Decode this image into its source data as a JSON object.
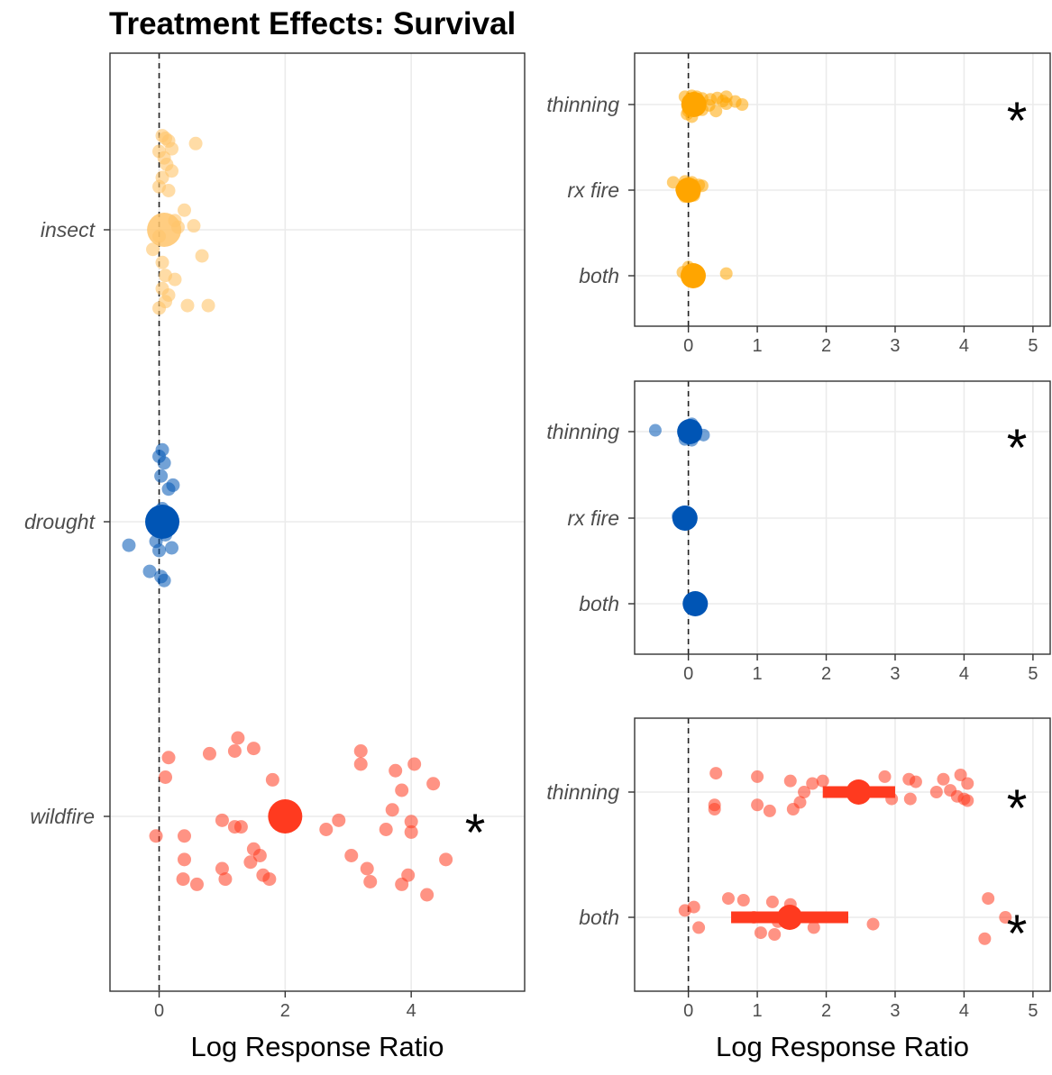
{
  "title": "Treatment Effects: Survival",
  "colors": {
    "orange_light": "#FFC46B",
    "orange": "#FFA500",
    "blue": "#0055B5",
    "blue_light": "#5B8FD0",
    "red": "#FF3A1F",
    "red_light": "#FF7A66",
    "grid": "#EBEBEB",
    "border": "#333333"
  },
  "chart_data": [
    {
      "type": "scatter",
      "panel": "left",
      "xlabel": "Log Response Ratio",
      "ylabel": "",
      "xlim": [
        -0.78,
        5.8
      ],
      "xticks": [
        0,
        2,
        4
      ],
      "categories": [
        "insect",
        "drought",
        "wildfire"
      ],
      "significant": [
        false,
        false,
        true
      ],
      "zero_line": "dashed",
      "series": [
        {
          "category": "insect",
          "color": "#FFC46B",
          "mean": 0.08,
          "ci": [
            0.08,
            0.08
          ],
          "points": [
            [
              0.05,
              0.72
            ],
            [
              0.1,
              0.7
            ],
            [
              0.15,
              0.68
            ],
            [
              0.2,
              0.62
            ],
            [
              0.58,
              0.66
            ],
            [
              0.0,
              0.6
            ],
            [
              0.08,
              0.55
            ],
            [
              0.12,
              0.5
            ],
            [
              0.2,
              0.45
            ],
            [
              0.05,
              0.4
            ],
            [
              0.0,
              0.33
            ],
            [
              0.15,
              0.3
            ],
            [
              0.4,
              0.15
            ],
            [
              0.25,
              0.07
            ],
            [
              0.55,
              0.03
            ],
            [
              0.3,
              0.02
            ],
            [
              0.0,
              -0.05
            ],
            [
              -0.1,
              -0.15
            ],
            [
              0.05,
              -0.25
            ],
            [
              0.68,
              -0.2
            ],
            [
              0.1,
              -0.35
            ],
            [
              0.25,
              -0.38
            ],
            [
              0.05,
              -0.45
            ],
            [
              0.15,
              -0.5
            ],
            [
              0.45,
              -0.58
            ],
            [
              0.78,
              -0.58
            ],
            [
              0.0,
              -0.6
            ],
            [
              0.1,
              -0.55
            ]
          ]
        },
        {
          "category": "drought",
          "color": "#0055B5",
          "mean": 0.05,
          "ci": [
            0.05,
            0.05
          ],
          "points": [
            [
              0.05,
              0.55
            ],
            [
              0.0,
              0.5
            ],
            [
              0.08,
              0.45
            ],
            [
              0.03,
              0.35
            ],
            [
              0.22,
              0.28
            ],
            [
              0.15,
              0.25
            ],
            [
              0.05,
              0.1
            ],
            [
              0.0,
              0.0
            ],
            [
              0.1,
              -0.1
            ],
            [
              -0.05,
              -0.15
            ],
            [
              0.2,
              -0.2
            ],
            [
              0.0,
              -0.22
            ],
            [
              -0.48,
              -0.18
            ],
            [
              -0.15,
              -0.38
            ],
            [
              0.03,
              -0.42
            ],
            [
              0.08,
              -0.45
            ]
          ]
        },
        {
          "category": "wildfire",
          "color": "#FF3A1F",
          "mean": 2.0,
          "ci": [
            2.0,
            2.0
          ],
          "points": [
            [
              1.25,
              0.6
            ],
            [
              1.2,
              0.5
            ],
            [
              1.5,
              0.52
            ],
            [
              0.8,
              0.48
            ],
            [
              0.15,
              0.45
            ],
            [
              0.1,
              0.3
            ],
            [
              1.8,
              0.28
            ],
            [
              3.2,
              0.5
            ],
            [
              3.2,
              0.4
            ],
            [
              3.75,
              0.35
            ],
            [
              4.05,
              0.4
            ],
            [
              4.35,
              0.25
            ],
            [
              3.85,
              0.2
            ],
            [
              3.7,
              0.05
            ],
            [
              2.85,
              -0.03
            ],
            [
              1.0,
              -0.03
            ],
            [
              1.2,
              -0.08
            ],
            [
              1.3,
              -0.08
            ],
            [
              2.65,
              -0.1
            ],
            [
              3.6,
              -0.1
            ],
            [
              4.0,
              -0.04
            ],
            [
              4.0,
              -0.12
            ],
            [
              -0.05,
              -0.15
            ],
            [
              0.4,
              -0.15
            ],
            [
              1.5,
              -0.25
            ],
            [
              1.6,
              -0.3
            ],
            [
              3.05,
              -0.3
            ],
            [
              4.55,
              -0.33
            ],
            [
              0.4,
              -0.33
            ],
            [
              1.0,
              -0.4
            ],
            [
              1.45,
              -0.35
            ],
            [
              1.65,
              -0.45
            ],
            [
              1.75,
              -0.48
            ],
            [
              3.3,
              -0.4
            ],
            [
              3.35,
              -0.5
            ],
            [
              3.95,
              -0.45
            ],
            [
              3.85,
              -0.52
            ],
            [
              4.25,
              -0.6
            ],
            [
              0.38,
              -0.48
            ],
            [
              0.6,
              -0.52
            ],
            [
              1.05,
              -0.48
            ]
          ]
        }
      ]
    },
    {
      "type": "scatter",
      "panel": "right-top",
      "xlabel": "",
      "xlim": [
        -0.78,
        5.25
      ],
      "xticks": [
        0,
        1,
        2,
        3,
        4,
        5
      ],
      "categories": [
        "thinning",
        "rx fire",
        "both"
      ],
      "significant": [
        true,
        false,
        false
      ],
      "zero_line": "dashed",
      "series": [
        {
          "category": "thinning",
          "color": "#FFA500",
          "mean": 0.08,
          "ci": [
            0.08,
            0.08
          ],
          "points": [
            [
              -0.05,
              0.18
            ],
            [
              0.05,
              0.2
            ],
            [
              0.12,
              0.18
            ],
            [
              0.2,
              0.14
            ],
            [
              0.32,
              0.12
            ],
            [
              0.42,
              0.15
            ],
            [
              0.55,
              0.18
            ],
            [
              0.5,
              0.08
            ],
            [
              0.68,
              0.07
            ],
            [
              0.78,
              0.0
            ],
            [
              0.55,
              0.02
            ],
            [
              0.3,
              -0.02
            ],
            [
              0.15,
              0.05
            ],
            [
              0.0,
              0.08
            ],
            [
              0.1,
              -0.1
            ],
            [
              0.2,
              -0.12
            ],
            [
              0.0,
              -0.15
            ],
            [
              0.4,
              -0.15
            ],
            [
              -0.02,
              -0.22
            ],
            [
              0.05,
              -0.28
            ]
          ]
        },
        {
          "category": "rx fire",
          "color": "#FFA500",
          "mean": 0.0,
          "ci": [
            0.0,
            0.0
          ],
          "points": [
            [
              -0.22,
              0.18
            ],
            [
              -0.05,
              0.2
            ],
            [
              0.05,
              0.18
            ],
            [
              0.15,
              0.12
            ],
            [
              0.2,
              0.1
            ],
            [
              -0.1,
              0.02
            ],
            [
              0.05,
              -0.05
            ],
            [
              0.0,
              -0.1
            ],
            [
              0.08,
              -0.12
            ],
            [
              -0.05,
              -0.15
            ]
          ]
        },
        {
          "category": "both",
          "color": "#FFA500",
          "mean": 0.07,
          "ci": [
            0.07,
            0.07
          ],
          "points": [
            [
              0.0,
              0.2
            ],
            [
              -0.08,
              0.08
            ],
            [
              0.55,
              0.05
            ],
            [
              0.1,
              0.0
            ]
          ]
        }
      ]
    },
    {
      "type": "scatter",
      "panel": "right-middle",
      "xlabel": "",
      "xlim": [
        -0.78,
        5.25
      ],
      "xticks": [
        0,
        1,
        2,
        3,
        4,
        5
      ],
      "categories": [
        "thinning",
        "rx fire",
        "both"
      ],
      "significant": [
        true,
        false,
        false
      ],
      "zero_line": "dashed",
      "series": [
        {
          "category": "thinning",
          "color": "#0055B5",
          "mean": 0.02,
          "ci": [
            0.02,
            0.02
          ],
          "points": [
            [
              0.05,
              0.18
            ],
            [
              0.08,
              0.12
            ],
            [
              0.02,
              0.05
            ],
            [
              -0.48,
              0.03
            ],
            [
              0.22,
              -0.08
            ],
            [
              0.0,
              -0.12
            ],
            [
              -0.05,
              -0.18
            ],
            [
              0.05,
              -0.2
            ],
            [
              0.1,
              -0.1
            ]
          ]
        },
        {
          "category": "rx fire",
          "color": "#0055B5",
          "mean": -0.05,
          "ci": [
            -0.05,
            -0.05
          ],
          "points": [
            [
              -0.15,
              0.05
            ],
            [
              -0.1,
              -0.02
            ],
            [
              0.0,
              -0.05
            ],
            [
              -0.05,
              0.0
            ]
          ]
        },
        {
          "category": "both",
          "color": "#0055B5",
          "mean": 0.1,
          "ci": [
            0.1,
            0.1
          ],
          "points": [
            [
              0.15,
              -0.08
            ],
            [
              0.05,
              0.05
            ],
            [
              0.18,
              0.0
            ]
          ]
        }
      ]
    },
    {
      "type": "scatter",
      "panel": "right-bottom",
      "xlabel": "Log Response Ratio",
      "xlim": [
        -0.78,
        5.25
      ],
      "xticks": [
        0,
        1,
        2,
        3,
        4,
        5
      ],
      "categories": [
        "thinning",
        "both"
      ],
      "significant": [
        true,
        true
      ],
      "zero_line": "dashed",
      "series": [
        {
          "category": "thinning",
          "color": "#FF3A1F",
          "mean": 2.47,
          "ci": [
            1.95,
            3.0
          ],
          "points": [
            [
              0.4,
              0.22
            ],
            [
              1.0,
              0.18
            ],
            [
              1.48,
              0.13
            ],
            [
              1.8,
              0.1
            ],
            [
              1.95,
              0.13
            ],
            [
              1.68,
              0.0
            ],
            [
              2.85,
              0.18
            ],
            [
              3.3,
              0.12
            ],
            [
              3.2,
              0.15
            ],
            [
              3.7,
              0.15
            ],
            [
              3.95,
              0.2
            ],
            [
              4.05,
              0.1
            ],
            [
              3.8,
              0.02
            ],
            [
              3.6,
              0.0
            ],
            [
              3.9,
              -0.05
            ],
            [
              4.0,
              -0.08
            ],
            [
              4.05,
              -0.1
            ],
            [
              2.95,
              -0.08
            ],
            [
              3.22,
              -0.08
            ],
            [
              1.62,
              -0.12
            ],
            [
              0.38,
              -0.15
            ],
            [
              1.0,
              -0.15
            ],
            [
              1.18,
              -0.22
            ],
            [
              1.52,
              -0.2
            ],
            [
              0.38,
              -0.2
            ]
          ]
        },
        {
          "category": "both",
          "color": "#FF3A1F",
          "mean": 1.47,
          "ci": [
            0.62,
            2.32
          ],
          "points": [
            [
              0.58,
              0.22
            ],
            [
              0.8,
              0.2
            ],
            [
              1.22,
              0.18
            ],
            [
              1.48,
              0.15
            ],
            [
              -0.05,
              0.08
            ],
            [
              0.08,
              0.12
            ],
            [
              1.5,
              0.05
            ],
            [
              0.95,
              0.0
            ],
            [
              1.3,
              -0.05
            ],
            [
              1.82,
              -0.12
            ],
            [
              2.68,
              -0.08
            ],
            [
              0.15,
              -0.12
            ],
            [
              1.05,
              -0.18
            ],
            [
              1.25,
              -0.2
            ],
            [
              4.35,
              0.22
            ],
            [
              4.6,
              0.0
            ],
            [
              4.3,
              -0.25
            ]
          ]
        }
      ]
    }
  ]
}
